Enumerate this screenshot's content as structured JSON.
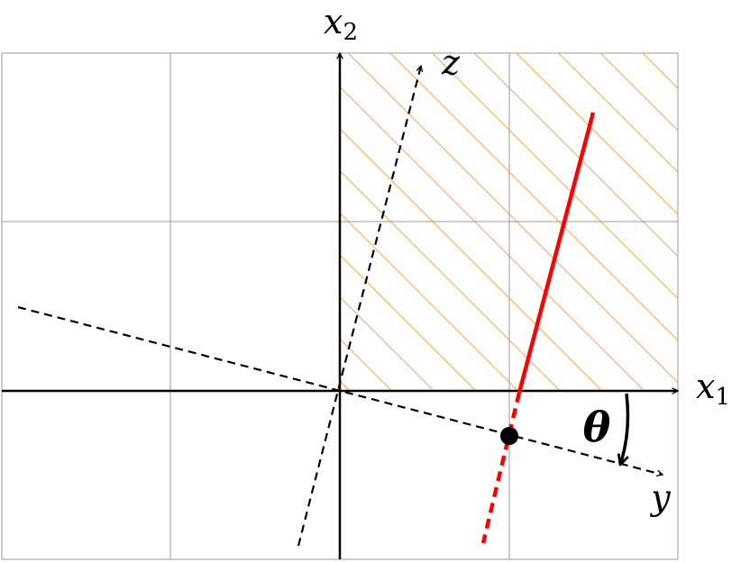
{
  "labels": {
    "x2": {
      "base": "x",
      "sub": "2"
    },
    "x1": {
      "base": "x",
      "sub": "1"
    },
    "z": "z",
    "y": "y",
    "theta": "θ"
  }
}
